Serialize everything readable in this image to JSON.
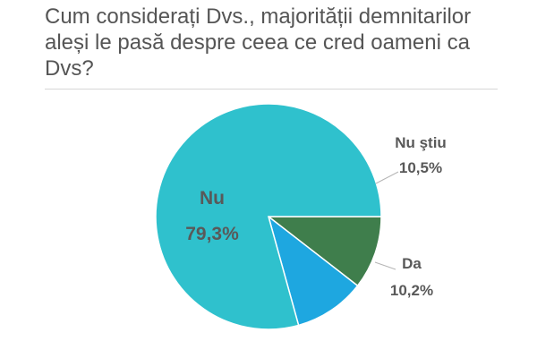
{
  "title": "Cum considerați Dvs., majorității demnitarilor aleși le pasă despre ceea ce cred oameni ca Dvs?",
  "chart_data": {
    "type": "pie",
    "title": "Cum considerați Dvs., majorității demnitarilor aleși le pasă despre ceea ce cred oameni ca Dvs?",
    "slices": [
      {
        "label": "Nu ştiu",
        "value": 10.5,
        "display": "10,5%",
        "color": "#3f7e4c"
      },
      {
        "label": "Da",
        "value": 10.2,
        "display": "10,2%",
        "color": "#1ea7e0"
      },
      {
        "label": "Nu",
        "value": 79.3,
        "display": "79,3%",
        "color": "#2fc1cd"
      }
    ],
    "start_angle_deg": 0,
    "direction": "clockwise",
    "legend": "none"
  }
}
